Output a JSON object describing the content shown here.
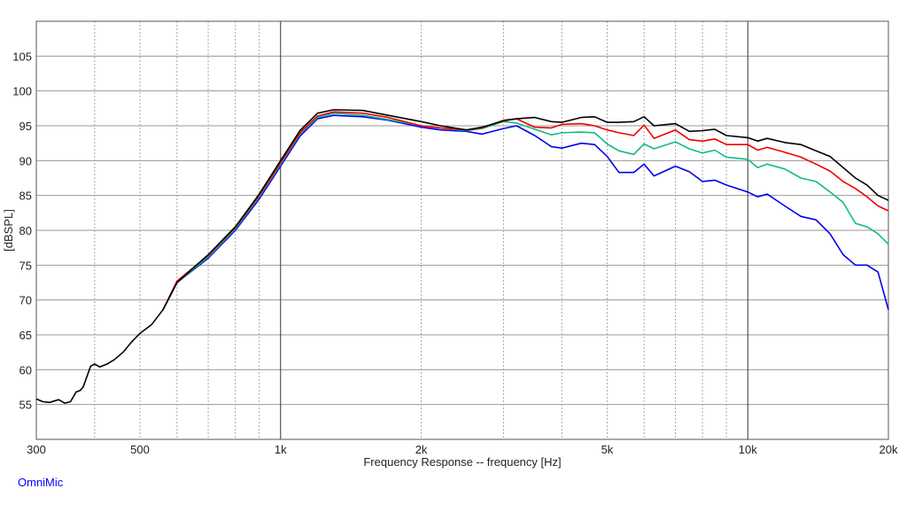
{
  "chart_data": {
    "type": "line",
    "title": "",
    "xlabel": "Frequency Response -- frequency [Hz]",
    "ylabel": "[dBSPL]",
    "x_scale": "log",
    "xlim": [
      300,
      20000
    ],
    "ylim": [
      50,
      110
    ],
    "x_ticks": [
      {
        "value": 300,
        "label": "300"
      },
      {
        "value": 500,
        "label": "500"
      },
      {
        "value": 1000,
        "label": "1k"
      },
      {
        "value": 2000,
        "label": "2k"
      },
      {
        "value": 5000,
        "label": "5k"
      },
      {
        "value": 10000,
        "label": "10k"
      },
      {
        "value": 20000,
        "label": "20k"
      }
    ],
    "x_major_lines": [
      1000,
      10000
    ],
    "x_minor_lines": [
      400,
      500,
      600,
      700,
      800,
      900,
      2000,
      3000,
      4000,
      5000,
      6000,
      7000,
      8000,
      9000
    ],
    "y_ticks": [
      55,
      60,
      65,
      70,
      75,
      80,
      85,
      90,
      95,
      100,
      105
    ],
    "grid": true,
    "legend": "none",
    "series": [
      {
        "color": "#0000ee",
        "points": [
          [
            560,
            68.6
          ],
          [
            600,
            72.5
          ],
          [
            700,
            76
          ],
          [
            800,
            80
          ],
          [
            900,
            84.5
          ],
          [
            1000,
            89.2
          ],
          [
            1100,
            93.5
          ],
          [
            1200,
            96
          ],
          [
            1300,
            96.5
          ],
          [
            1500,
            96.3
          ],
          [
            1700,
            95.8
          ],
          [
            2000,
            94.8
          ],
          [
            2200,
            94.4
          ],
          [
            2500,
            94.2
          ],
          [
            2700,
            93.8
          ],
          [
            3000,
            94.6
          ],
          [
            3200,
            95
          ],
          [
            3500,
            93.6
          ],
          [
            3800,
            92
          ],
          [
            4000,
            91.8
          ],
          [
            4400,
            92.5
          ],
          [
            4700,
            92.3
          ],
          [
            5000,
            90.6
          ],
          [
            5300,
            88.3
          ],
          [
            5700,
            88.3
          ],
          [
            6000,
            89.5
          ],
          [
            6300,
            87.8
          ],
          [
            7000,
            89.2
          ],
          [
            7500,
            88.4
          ],
          [
            8000,
            87
          ],
          [
            8500,
            87.2
          ],
          [
            9000,
            86.5
          ],
          [
            10000,
            85.5
          ],
          [
            10500,
            84.8
          ],
          [
            11000,
            85.2
          ],
          [
            12000,
            83.5
          ],
          [
            13000,
            82
          ],
          [
            14000,
            81.5
          ],
          [
            15000,
            79.5
          ],
          [
            16000,
            76.5
          ],
          [
            17000,
            75
          ],
          [
            18000,
            75
          ],
          [
            19000,
            74
          ],
          [
            20000,
            68.6
          ]
        ]
      },
      {
        "color": "#11bb88",
        "points": [
          [
            560,
            68.6
          ],
          [
            600,
            72.5
          ],
          [
            700,
            76.2
          ],
          [
            800,
            80.2
          ],
          [
            900,
            84.8
          ],
          [
            1000,
            89.5
          ],
          [
            1100,
            93.8
          ],
          [
            1200,
            96.2
          ],
          [
            1300,
            96.8
          ],
          [
            1500,
            96.5
          ],
          [
            1700,
            95.9
          ],
          [
            2000,
            95
          ],
          [
            2200,
            94.7
          ],
          [
            2500,
            94.3
          ],
          [
            2700,
            94.6
          ],
          [
            3000,
            95.6
          ],
          [
            3200,
            95.4
          ],
          [
            3500,
            94.5
          ],
          [
            3800,
            93.7
          ],
          [
            4000,
            94
          ],
          [
            4400,
            94.1
          ],
          [
            4700,
            94
          ],
          [
            5000,
            92.4
          ],
          [
            5300,
            91.4
          ],
          [
            5700,
            90.9
          ],
          [
            6000,
            92.4
          ],
          [
            6300,
            91.7
          ],
          [
            7000,
            92.7
          ],
          [
            7500,
            91.7
          ],
          [
            8000,
            91.1
          ],
          [
            8500,
            91.5
          ],
          [
            9000,
            90.5
          ],
          [
            10000,
            90.2
          ],
          [
            10500,
            89
          ],
          [
            11000,
            89.5
          ],
          [
            12000,
            88.8
          ],
          [
            13000,
            87.5
          ],
          [
            14000,
            87
          ],
          [
            15000,
            85.5
          ],
          [
            16000,
            84
          ],
          [
            17000,
            81
          ],
          [
            18000,
            80.5
          ],
          [
            19000,
            79.5
          ],
          [
            20000,
            78
          ]
        ]
      },
      {
        "color": "#ee0000",
        "points": [
          [
            560,
            68.6
          ],
          [
            600,
            72.7
          ],
          [
            700,
            76.4
          ],
          [
            800,
            80.4
          ],
          [
            900,
            85
          ],
          [
            1000,
            89.7
          ],
          [
            1100,
            94
          ],
          [
            1200,
            96.4
          ],
          [
            1300,
            97
          ],
          [
            1500,
            96.8
          ],
          [
            1700,
            96.2
          ],
          [
            2000,
            95
          ],
          [
            2200,
            94.7
          ],
          [
            2500,
            94.4
          ],
          [
            2700,
            94.7
          ],
          [
            3000,
            95.8
          ],
          [
            3200,
            96
          ],
          [
            3500,
            94.8
          ],
          [
            3800,
            94.7
          ],
          [
            4000,
            95.2
          ],
          [
            4400,
            95.3
          ],
          [
            4700,
            95
          ],
          [
            5000,
            94.4
          ],
          [
            5300,
            94
          ],
          [
            5700,
            93.6
          ],
          [
            6000,
            95.1
          ],
          [
            6300,
            93.2
          ],
          [
            7000,
            94.4
          ],
          [
            7500,
            93
          ],
          [
            8000,
            92.8
          ],
          [
            8500,
            93.1
          ],
          [
            9000,
            92.3
          ],
          [
            10000,
            92.3
          ],
          [
            10500,
            91.5
          ],
          [
            11000,
            91.9
          ],
          [
            12000,
            91.2
          ],
          [
            13000,
            90.5
          ],
          [
            14000,
            89.5
          ],
          [
            15000,
            88.5
          ],
          [
            16000,
            87
          ],
          [
            17000,
            86
          ],
          [
            18000,
            84.8
          ],
          [
            19000,
            83.5
          ],
          [
            20000,
            82.8
          ]
        ]
      },
      {
        "color": "#000000",
        "points": [
          [
            300,
            55.8
          ],
          [
            310,
            55.4
          ],
          [
            320,
            55.3
          ],
          [
            335,
            55.7
          ],
          [
            345,
            55.2
          ],
          [
            355,
            55.4
          ],
          [
            365,
            56.8
          ],
          [
            372,
            57
          ],
          [
            378,
            57.5
          ],
          [
            385,
            59
          ],
          [
            392,
            60.5
          ],
          [
            400,
            60.8
          ],
          [
            410,
            60.4
          ],
          [
            425,
            60.8
          ],
          [
            440,
            61.4
          ],
          [
            460,
            62.5
          ],
          [
            480,
            64
          ],
          [
            500,
            65.2
          ],
          [
            530,
            66.5
          ],
          [
            560,
            68.6
          ],
          [
            600,
            72.5
          ],
          [
            700,
            76.5
          ],
          [
            800,
            80.5
          ],
          [
            900,
            85.2
          ],
          [
            1000,
            90
          ],
          [
            1100,
            94.3
          ],
          [
            1200,
            96.8
          ],
          [
            1300,
            97.3
          ],
          [
            1500,
            97.2
          ],
          [
            1700,
            96.5
          ],
          [
            2000,
            95.6
          ],
          [
            2200,
            95
          ],
          [
            2500,
            94.4
          ],
          [
            2700,
            94.8
          ],
          [
            3000,
            95.7
          ],
          [
            3200,
            96
          ],
          [
            3500,
            96.2
          ],
          [
            3800,
            95.6
          ],
          [
            4000,
            95.5
          ],
          [
            4400,
            96.2
          ],
          [
            4700,
            96.3
          ],
          [
            5000,
            95.5
          ],
          [
            5300,
            95.5
          ],
          [
            5700,
            95.6
          ],
          [
            6000,
            96.3
          ],
          [
            6300,
            95
          ],
          [
            7000,
            95.3
          ],
          [
            7500,
            94.2
          ],
          [
            8000,
            94.3
          ],
          [
            8500,
            94.5
          ],
          [
            9000,
            93.6
          ],
          [
            10000,
            93.3
          ],
          [
            10500,
            92.8
          ],
          [
            11000,
            93.2
          ],
          [
            12000,
            92.6
          ],
          [
            13000,
            92.3
          ],
          [
            14000,
            91.4
          ],
          [
            15000,
            90.6
          ],
          [
            16000,
            89
          ],
          [
            17000,
            87.5
          ],
          [
            18000,
            86.5
          ],
          [
            19000,
            85
          ],
          [
            20000,
            84.3
          ]
        ]
      }
    ]
  },
  "footer": {
    "label": "OmniMic"
  }
}
